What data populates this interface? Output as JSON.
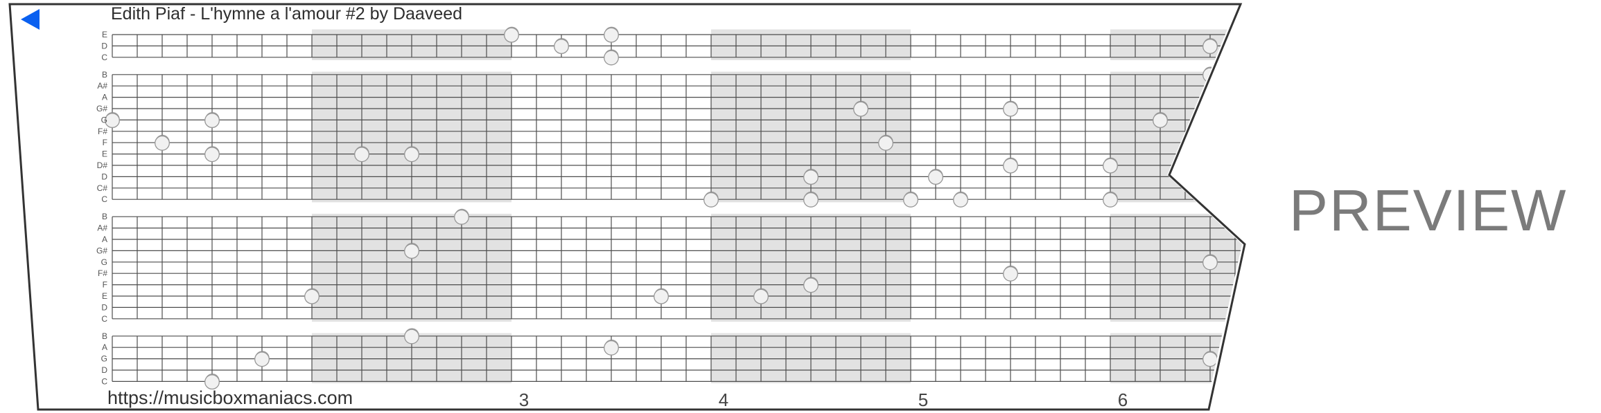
{
  "header": {
    "title": "Edith Piaf - L'hymne a l'amour #2 by Daaveed"
  },
  "play_button": {
    "icon": "play-left-triangle-icon",
    "color": "#0a60f0"
  },
  "footer": {
    "url": "https://musicboxmaniacs.com"
  },
  "watermark": {
    "text": "PREVIEW"
  },
  "colors": {
    "paper_border": "#333333",
    "grid_line": "#4d4d4d",
    "measure_shading": "#e2e2e2",
    "note_fill": "#f1f1f1",
    "note_stroke": "#979797",
    "note_shadow": "#8b8b8b",
    "label_text": "#555555",
    "number_text": "#444444"
  },
  "chart_data": {
    "type": "scatter",
    "title": "Edith Piaf - L'hymne a l'amour #2 by Daaveed",
    "description": "30-note music box punched strip preview; holes plotted on pitch lines vs eighth-note time columns",
    "pitch_labels_top_to_bottom": [
      "E",
      "D",
      "C",
      "B",
      "A#",
      "A",
      "G#",
      "G",
      "F#",
      "F",
      "E",
      "D#",
      "D",
      "C#",
      "C",
      "B",
      "A#",
      "A",
      "G#",
      "G",
      "F#",
      "F",
      "E",
      "D",
      "C",
      "B",
      "A",
      "G",
      "D",
      "C"
    ],
    "octave_breaks_after_rows": [
      2,
      14,
      24
    ],
    "measure_numbers": [
      "3",
      "4",
      "5",
      "6"
    ],
    "shaded_measures": [
      2,
      4,
      6
    ],
    "cols_per_measure": 8,
    "notes": [
      {
        "pitch": "G",
        "row": 7,
        "col": 0
      },
      {
        "pitch": "F",
        "row": 9,
        "col": 2
      },
      {
        "pitch": "G",
        "row": 7,
        "col": 4
      },
      {
        "pitch": "E",
        "row": 10,
        "col": 4
      },
      {
        "pitch": "C",
        "row": 29,
        "col": 4
      },
      {
        "pitch": "G",
        "row": 27,
        "col": 6
      },
      {
        "pitch": "E",
        "row": 22,
        "col": 8
      },
      {
        "pitch": "E",
        "row": 10,
        "col": 10
      },
      {
        "pitch": "E",
        "row": 10,
        "col": 12
      },
      {
        "pitch": "G#",
        "row": 18,
        "col": 12
      },
      {
        "pitch": "B",
        "row": 25,
        "col": 12
      },
      {
        "pitch": "B",
        "row": 15,
        "col": 14
      },
      {
        "pitch": "E",
        "row": 0,
        "col": 16
      },
      {
        "pitch": "D",
        "row": 1,
        "col": 18
      },
      {
        "pitch": "E",
        "row": 0,
        "col": 20
      },
      {
        "pitch": "C",
        "row": 2,
        "col": 20
      },
      {
        "pitch": "A",
        "row": 26,
        "col": 20
      },
      {
        "pitch": "E",
        "row": 22,
        "col": 22
      },
      {
        "pitch": "C",
        "row": 14,
        "col": 24
      },
      {
        "pitch": "E",
        "row": 22,
        "col": 26
      },
      {
        "pitch": "D",
        "row": 12,
        "col": 28
      },
      {
        "pitch": "C",
        "row": 14,
        "col": 28
      },
      {
        "pitch": "F",
        "row": 21,
        "col": 28
      },
      {
        "pitch": "G#",
        "row": 6,
        "col": 30
      },
      {
        "pitch": "F",
        "row": 9,
        "col": 31
      },
      {
        "pitch": "C",
        "row": 14,
        "col": 32
      },
      {
        "pitch": "D",
        "row": 12,
        "col": 33
      },
      {
        "pitch": "C",
        "row": 14,
        "col": 34
      },
      {
        "pitch": "G#",
        "row": 6,
        "col": 36
      },
      {
        "pitch": "D#",
        "row": 11,
        "col": 36
      },
      {
        "pitch": "F#",
        "row": 20,
        "col": 36
      },
      {
        "pitch": "D#",
        "row": 11,
        "col": 40
      },
      {
        "pitch": "C",
        "row": 14,
        "col": 40
      },
      {
        "pitch": "G",
        "row": 7,
        "col": 42
      },
      {
        "pitch": "D",
        "row": 1,
        "col": 44
      },
      {
        "pitch": "B",
        "row": 3,
        "col": 44
      },
      {
        "pitch": "G",
        "row": 19,
        "col": 44
      },
      {
        "pitch": "G",
        "row": 27,
        "col": 44
      }
    ]
  }
}
